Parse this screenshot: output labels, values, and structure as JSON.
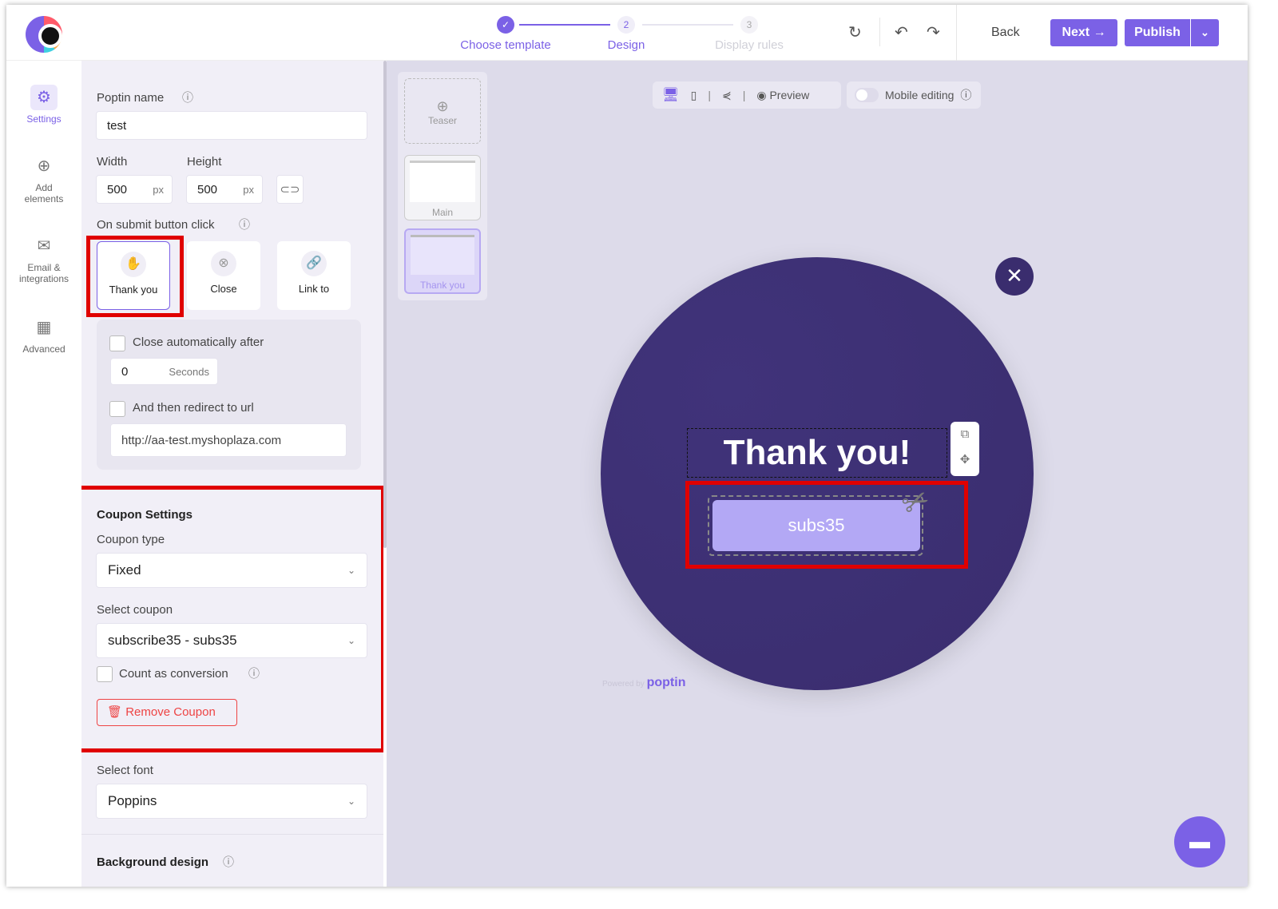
{
  "header": {
    "steps": [
      {
        "num": "1",
        "label": "Choose template",
        "state": "done"
      },
      {
        "num": "2",
        "label": "Design",
        "state": "active"
      },
      {
        "num": "3",
        "label": "Display rules",
        "state": "upcoming"
      }
    ],
    "back_label": "Back",
    "next_label": "Next →",
    "publish_label": "Publish"
  },
  "rail": {
    "items": [
      {
        "label": "Settings",
        "icon": "gear-icon"
      },
      {
        "label": "Add elements",
        "icon": "plus-circle-icon"
      },
      {
        "label": "Email & integrations",
        "icon": "mail-icon"
      },
      {
        "label": "Advanced",
        "icon": "grid-icon"
      }
    ]
  },
  "panel": {
    "poptin_name_label": "Poptin name",
    "poptin_name_value": "test",
    "width_label": "Width",
    "width_value": "500",
    "height_label": "Height",
    "height_value": "500",
    "unit": "px",
    "on_submit_label": "On submit button click",
    "submit_options": [
      {
        "label": "Thank you",
        "selected": true
      },
      {
        "label": "Close"
      },
      {
        "label": "Link to"
      }
    ],
    "close_auto_label": "Close automatically after",
    "seconds_value": "0",
    "seconds_unit": "Seconds",
    "redirect_label": "And then redirect to url",
    "redirect_url": "http://aa-test.myshoplaza.com",
    "coupon_settings_title": "Coupon Settings",
    "coupon_type_label": "Coupon type",
    "coupon_type_value": "Fixed",
    "select_coupon_label": "Select coupon",
    "select_coupon_value": "subscribe35 - subs35",
    "count_conversion_label": "Count as conversion",
    "remove_coupon_label": "Remove Coupon",
    "select_font_label": "Select font",
    "font_value": "Poppins",
    "background_design_label": "Background design"
  },
  "canvas": {
    "thumbnails": [
      {
        "label": "Teaser"
      },
      {
        "label": "Main"
      },
      {
        "label": "Thank you",
        "selected": true
      }
    ],
    "preview_label": "Preview",
    "mobile_editing_label": "Mobile editing",
    "mobile_editing_on": false,
    "popup": {
      "title": "Thank you!",
      "coupon_code": "subs35",
      "bg_color": "#3d3073",
      "coupon_color": "#b3a8f5"
    },
    "powered_by": "Powered by",
    "brand": "poptin"
  },
  "colors": {
    "accent": "#7b61e6",
    "highlight": "#e00000"
  }
}
